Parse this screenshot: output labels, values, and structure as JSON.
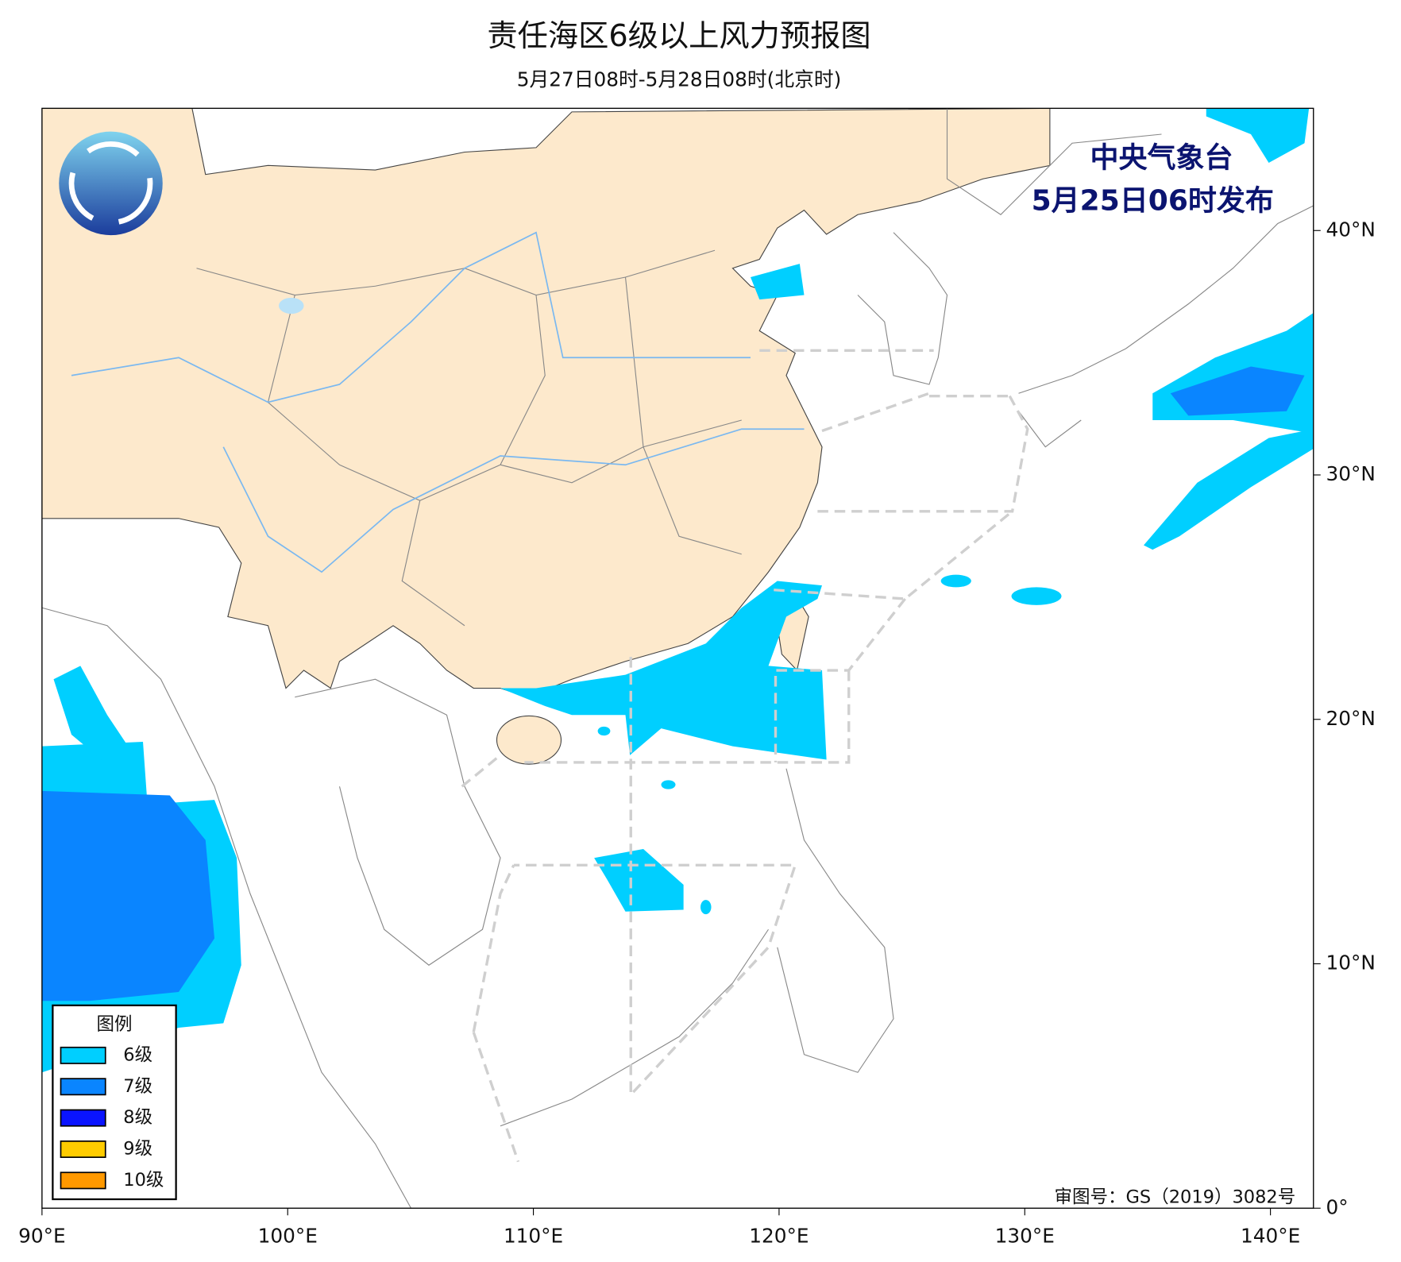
{
  "title": "责任海区6级以上风力预报图",
  "subtitle": "5月27日08时-5月28日08时(北京时)",
  "issuer": "中央气象台",
  "issue_time": "5月25日06时发布",
  "credit": "审图号：GS（2019）3082号",
  "legend": {
    "title": "图例",
    "items": [
      {
        "label": "6级",
        "color": "#00cfff"
      },
      {
        "label": "7级",
        "color": "#0a85ff"
      },
      {
        "label": "8级",
        "color": "#0a14ff"
      },
      {
        "label": "9级",
        "color": "#ffcc00"
      },
      {
        "label": "10级",
        "color": "#ff9900"
      }
    ]
  },
  "axes": {
    "xlim": [
      90,
      141.75
    ],
    "ylim": [
      0,
      45
    ],
    "xticks": [
      {
        "value": 90,
        "label": "90°E"
      },
      {
        "value": 100,
        "label": "100°E"
      },
      {
        "value": 110,
        "label": "110°E"
      },
      {
        "value": 120,
        "label": "120°E"
      },
      {
        "value": 130,
        "label": "130°E"
      },
      {
        "value": 140,
        "label": "140°E"
      }
    ],
    "yticks": [
      {
        "value": 0,
        "label": "0°"
      },
      {
        "value": 10,
        "label": "10°N"
      },
      {
        "value": 20,
        "label": "20°N"
      },
      {
        "value": 30,
        "label": "30°N"
      },
      {
        "value": 40,
        "label": "40°N"
      }
    ]
  }
}
